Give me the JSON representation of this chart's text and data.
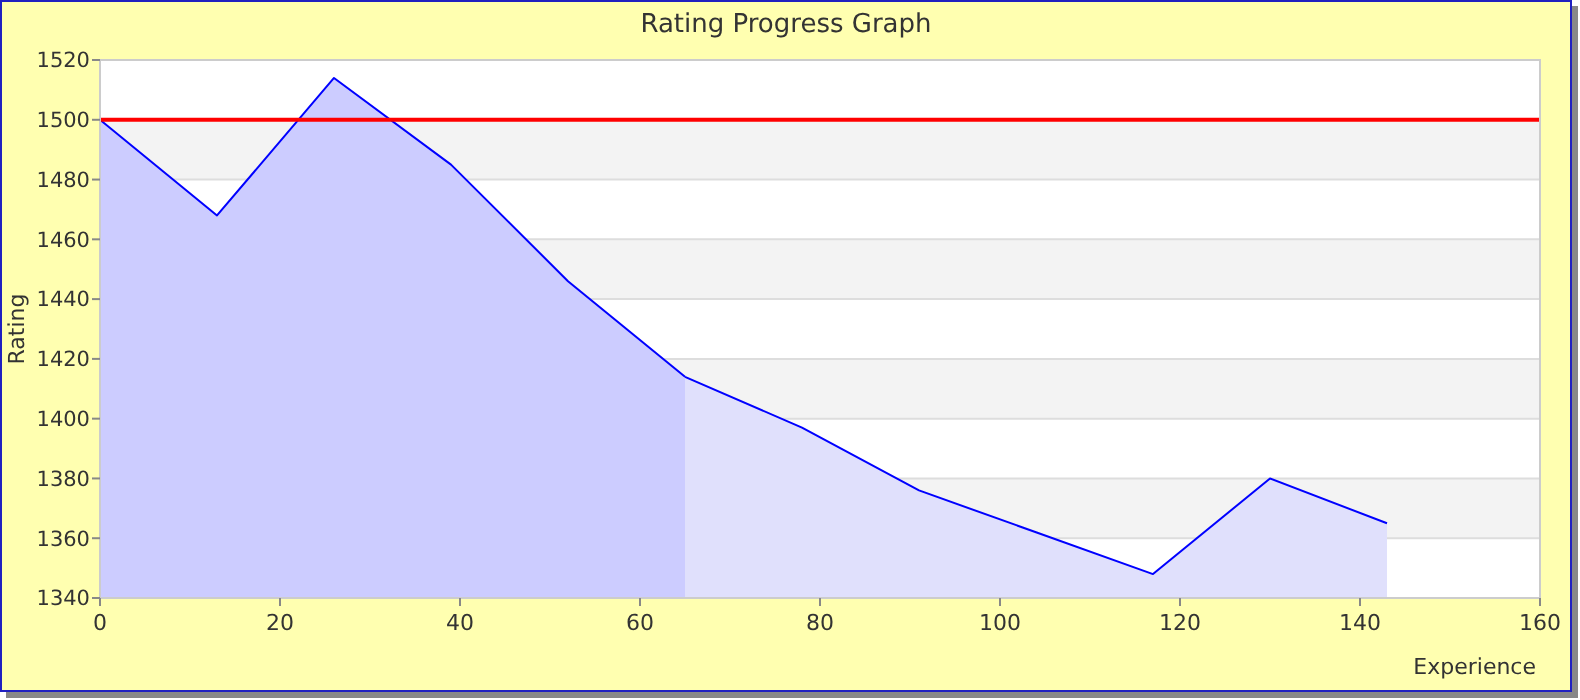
{
  "chart_data": {
    "type": "area",
    "title": "Rating Progress Graph",
    "xlabel": "Experience",
    "ylabel": "Rating",
    "series": [
      {
        "color": "#ccccff",
        "x": [
          0,
          13,
          26,
          39,
          52,
          65
        ],
        "values": [
          1500,
          1468,
          1514,
          1485,
          1446,
          1414
        ]
      },
      {
        "color": "#e0e0fc",
        "x": [
          65,
          78,
          91,
          104,
          117,
          130,
          143
        ],
        "values": [
          1414,
          1397,
          1376,
          1362,
          1348,
          1380,
          1365
        ]
      }
    ],
    "xlim": [
      0,
      160
    ],
    "xticks": [
      0,
      20,
      40,
      60,
      80,
      100,
      120,
      140,
      160
    ],
    "ylim": [
      1340,
      1520
    ],
    "yticks": [
      1340,
      1360,
      1380,
      1400,
      1420,
      1440,
      1460,
      1480,
      1500,
      1520
    ],
    "grid": "y",
    "ref_lines": [
      {
        "axis": "y",
        "value": 1500,
        "color": "#ff0000"
      }
    ]
  }
}
